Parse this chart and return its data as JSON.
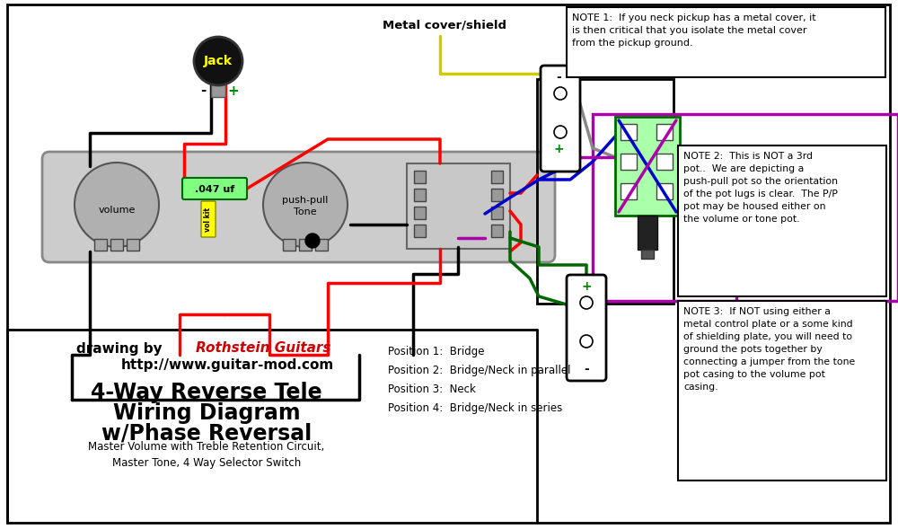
{
  "title_line1": "4-Way Reverse Tele",
  "title_line2": "Wiring Diagram",
  "title_line3": "w/Phase Reversal",
  "subtitle": "Master Volume with Treble Retention Circuit,\nMaster Tone, 4 Way Selector Switch",
  "credit_rothstein": "Rothstein Guitars",
  "credit_line2": "http://www.guitar-mod.com",
  "note1": "NOTE 1:  If you neck pickup has a metal cover, it\nis then critical that you isolate the metal cover\nfrom the pickup ground.",
  "note2": "NOTE 2:  This is NOT a 3rd\npot..  We are depicting a\npush-pull pot so the orientation\nof the pot lugs is clear.  The P/P\npot may be housed either on\nthe volume or tone pot.",
  "note3": "NOTE 3:  If NOT using either a\nmetal control plate or a some kind\nof shielding plate, you will need to\nground the pots together by\nconnecting a jumper from the tone\npot casing to the volume pot\ncasing.",
  "positions": "Position 1:  Bridge\nPosition 2:  Bridge/Neck in parallel\nPosition 3:  Neck\nPosition 4:  Bridge/Neck in series",
  "metal_cover_label": "Metal cover/shield",
  "bg": "#ffffff",
  "plate_fill": "#cccccc",
  "plate_edge": "#888888",
  "pot_fill": "#b0b0b0",
  "pot_edge": "#555555",
  "jack_fill": "#111111",
  "jack_text": "#ffff00",
  "cap_fill": "#80ff80",
  "cap_edge": "#006600",
  "volkit_fill": "#ffff00",
  "volkit_edge": "#888800",
  "pp_fill": "#aaffaa",
  "pp_edge": "#006600",
  "sw_fill": "#cccccc",
  "lug_fill": "#999999",
  "lug_edge": "#444444",
  "black": "#000000",
  "red": "#ff0000",
  "green": "#006600",
  "blue": "#0000cc",
  "yellow": "#cccc00",
  "gray": "#888888",
  "purple": "#aa00aa",
  "plus_green": "#008800",
  "note_edge": "#000000",
  "note_fill": "#ffffff"
}
